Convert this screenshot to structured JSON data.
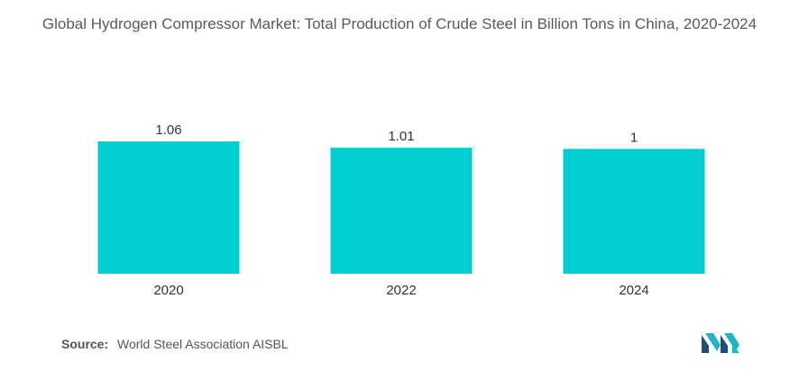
{
  "colors": {
    "bar": "#00CED1",
    "title_text": "#5a5a5a",
    "label_text": "#333333",
    "logo_dark": "#1F4E79",
    "logo_teal": "#1FB5C4"
  },
  "source": {
    "label": "Source:",
    "text": "World Steel Association AISBL"
  },
  "logo": {
    "icon": "mordor-intelligence-logo"
  },
  "chart_data": {
    "type": "bar",
    "title": "Global Hydrogen Compressor Market: Total Production of Crude Steel in Billion Tons in China, 2020-2024",
    "xlabel": "",
    "ylabel": "",
    "categories": [
      "2020",
      "2022",
      "2024"
    ],
    "values": [
      1.06,
      1.01,
      1
    ],
    "value_labels": [
      "1.06",
      "1.01",
      "1"
    ],
    "grid": false,
    "legend": "none"
  }
}
